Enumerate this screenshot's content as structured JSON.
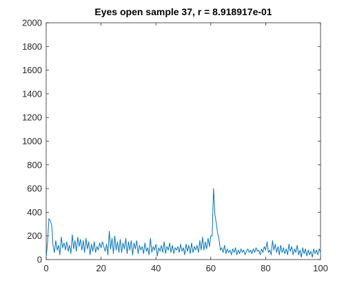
{
  "chart_data": {
    "type": "line",
    "title": "Eyes open sample 37, r = 8.918917e-01",
    "xlabel": "",
    "ylabel": "",
    "xlim": [
      0,
      100
    ],
    "ylim": [
      0,
      2000
    ],
    "xticks": [
      "0",
      "20",
      "40",
      "60",
      "80",
      "100"
    ],
    "yticks": [
      "0",
      "200",
      "400",
      "600",
      "800",
      "1000",
      "1200",
      "1400",
      "1600",
      "1800",
      "2000"
    ],
    "grid": false,
    "line_color": "#0072BD",
    "series": [
      {
        "x": [
          0,
          0.5,
          1,
          1.5,
          2,
          2.5,
          3,
          3.5,
          4,
          4.5,
          5,
          5.5,
          6,
          6.5,
          7,
          7.5,
          8,
          8.5,
          9,
          9.5,
          10,
          10.5,
          11,
          11.5,
          12,
          12.5,
          13,
          13.5,
          14,
          14.5,
          15,
          15.5,
          16,
          16.5,
          17,
          17.5,
          18,
          18.5,
          19,
          19.5,
          20,
          20.5,
          21,
          21.5,
          22,
          22.5,
          23,
          23.5,
          24,
          24.5,
          25,
          25.5,
          26,
          26.5,
          27,
          27.5,
          28,
          28.5,
          29,
          29.5,
          30,
          30.5,
          31,
          31.5,
          32,
          32.5,
          33,
          33.5,
          34,
          34.5,
          35,
          35.5,
          36,
          36.5,
          37,
          37.5,
          38,
          38.5,
          39,
          39.5,
          40,
          40.5,
          41,
          41.5,
          42,
          42.5,
          43,
          43.5,
          44,
          44.5,
          45,
          45.5,
          46,
          46.5,
          47,
          47.5,
          48,
          48.5,
          49,
          49.5,
          50,
          50.5,
          51,
          51.5,
          52,
          52.5,
          53,
          53.5,
          54,
          54.5,
          55,
          55.5,
          56,
          56.5,
          57,
          57.5,
          58,
          58.5,
          59,
          59.5,
          60,
          60.5,
          61,
          61.5,
          62,
          62.5,
          63,
          63.5,
          64,
          64.5,
          65,
          65.5,
          66,
          66.5,
          67,
          67.5,
          68,
          68.5,
          69,
          69.5,
          70,
          70.5,
          71,
          71.5,
          72,
          72.5,
          73,
          73.5,
          74,
          74.5,
          75,
          75.5,
          76,
          76.5,
          77,
          77.5,
          78,
          78.5,
          79,
          79.5,
          80,
          80.5,
          81,
          81.5,
          82,
          82.5,
          83,
          83.5,
          84,
          84.5,
          85,
          85.5,
          86,
          86.5,
          87,
          87.5,
          88,
          88.5,
          89,
          89.5,
          90,
          90.5,
          91,
          91.5,
          92,
          92.5,
          93,
          93.5,
          94,
          94.5,
          95,
          95.5,
          96,
          96.5,
          97,
          97.5,
          98,
          98.5,
          99,
          99.5,
          100
        ],
        "y": [
          20,
          150,
          345,
          330,
          290,
          120,
          60,
          160,
          80,
          120,
          40,
          190,
          100,
          140,
          80,
          150,
          70,
          120,
          50,
          210,
          90,
          160,
          70,
          190,
          110,
          170,
          80,
          160,
          60,
          180,
          90,
          150,
          40,
          130,
          70,
          150,
          60,
          110,
          80,
          140,
          100,
          150,
          110,
          70,
          130,
          40,
          240,
          90,
          180,
          50,
          200,
          80,
          150,
          60,
          170,
          60,
          140,
          90,
          180,
          50,
          150,
          80,
          160,
          40,
          140,
          90,
          160,
          50,
          120,
          80,
          110,
          50,
          140,
          70,
          100,
          40,
          180,
          60,
          110,
          80,
          130,
          30,
          100,
          70,
          120,
          60,
          150,
          50,
          110,
          80,
          140,
          60,
          120,
          50,
          100,
          80,
          110,
          60,
          130,
          70,
          100,
          40,
          130,
          70,
          120,
          50,
          140,
          60,
          110,
          80,
          120,
          60,
          160,
          80,
          190,
          80,
          150,
          90,
          180,
          110,
          200,
          200,
          600,
          380,
          310,
          220,
          170,
          80,
          100,
          60,
          120,
          50,
          90,
          60,
          80,
          40,
          90,
          60,
          100,
          40,
          80,
          50,
          90,
          60,
          80,
          40,
          70,
          90,
          60,
          80,
          50,
          90,
          60,
          100,
          70,
          80,
          40,
          90,
          60,
          110,
          80,
          150,
          60,
          80,
          40,
          160,
          80,
          130,
          60,
          110,
          40,
          120,
          60,
          100,
          50,
          90,
          40,
          130,
          70,
          110,
          40,
          90,
          60,
          120,
          40,
          80,
          20,
          100,
          50,
          90,
          30,
          80,
          40,
          70,
          20,
          90,
          50,
          80,
          40,
          90,
          60
        ]
      }
    ]
  }
}
